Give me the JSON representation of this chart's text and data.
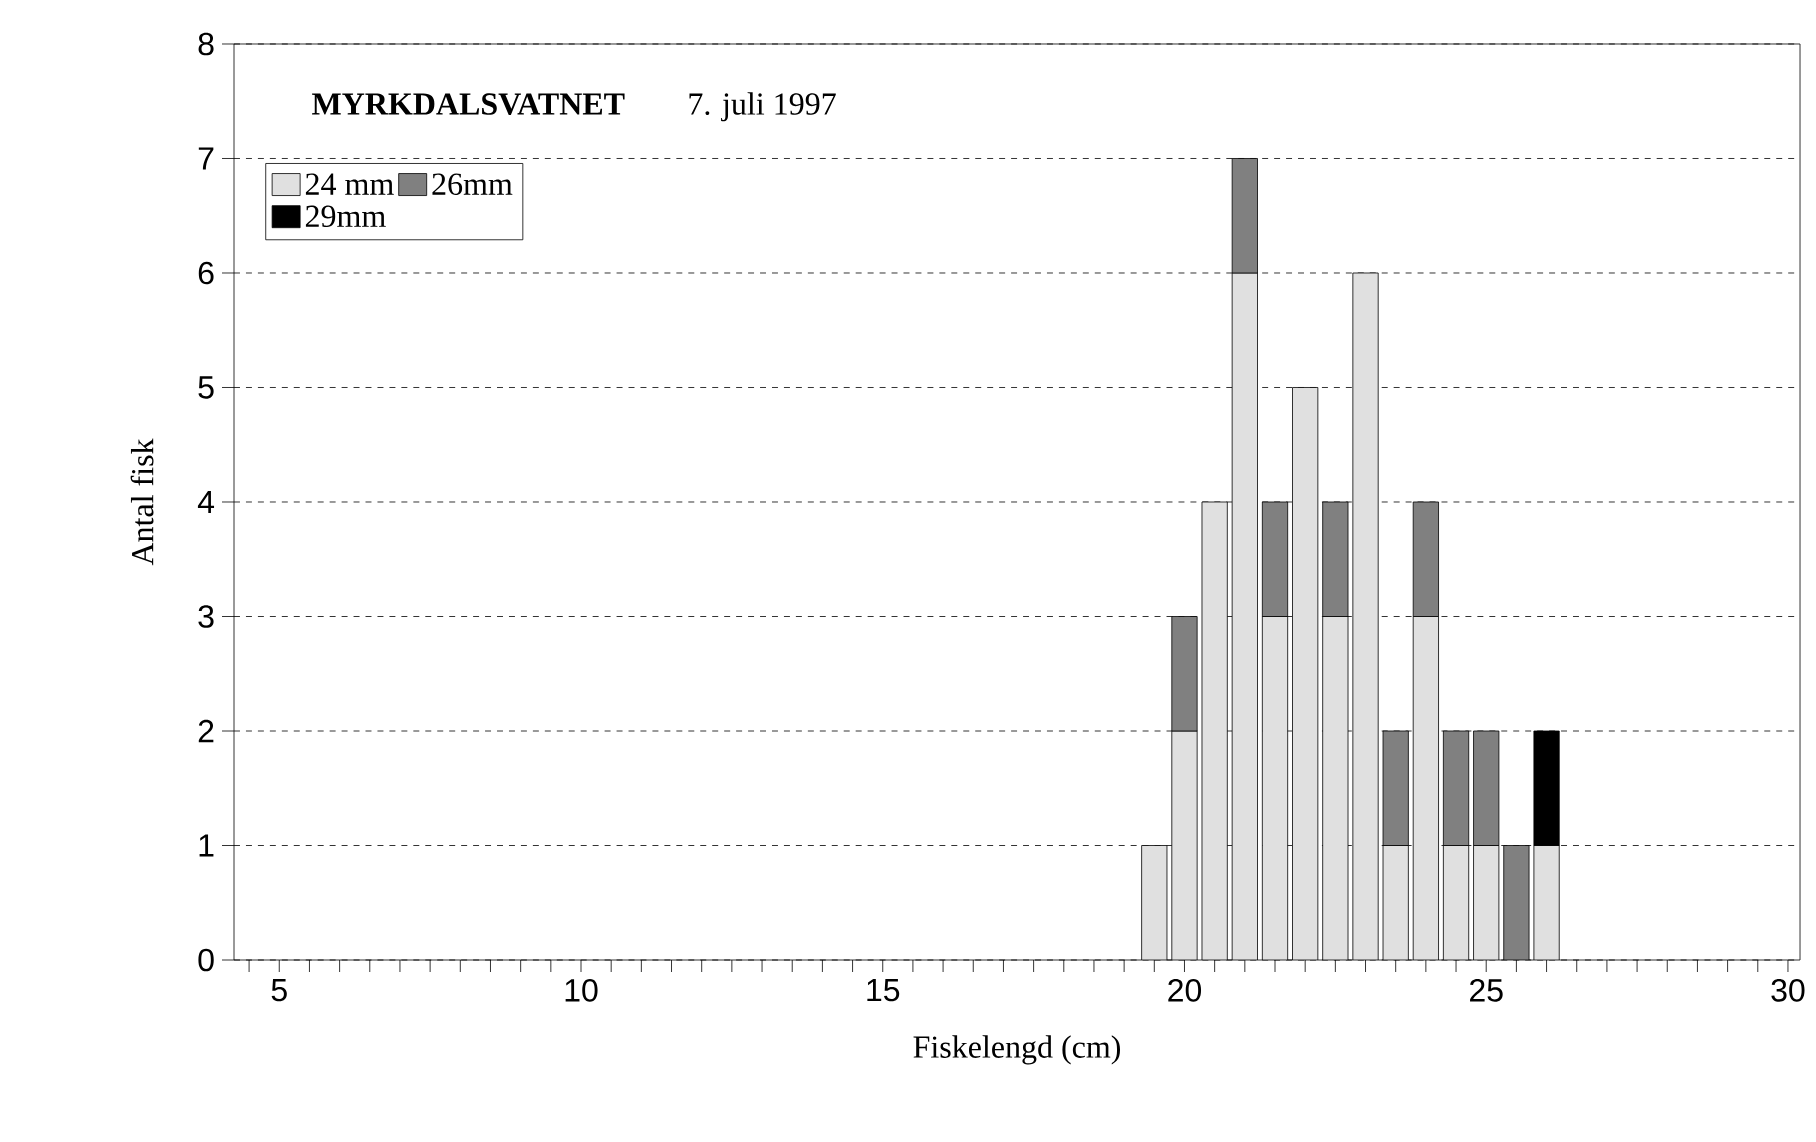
{
  "chart_data": {
    "type": "bar",
    "stacked": true,
    "title": "MYRKDALSVATNET",
    "subtitle": "7. juli 1997",
    "xlabel": "Fiskelengd (cm)",
    "ylabel": "Antal fisk",
    "x": [
      19.5,
      20,
      20.5,
      21,
      21.5,
      22,
      22.5,
      23,
      23.5,
      24,
      24.5,
      25,
      25.5,
      26
    ],
    "series": [
      {
        "name": "24 mm",
        "color": "#e0e0e0",
        "values": [
          1,
          2,
          4,
          6,
          3,
          5,
          3,
          6,
          1,
          3,
          1,
          1,
          null,
          1
        ]
      },
      {
        "name": "26mm",
        "color": "#808080",
        "values": [
          null,
          1,
          null,
          1,
          1,
          null,
          1,
          null,
          1,
          1,
          1,
          1,
          1,
          null
        ]
      },
      {
        "name": "29mm",
        "color": "#000000",
        "values": [
          null,
          null,
          null,
          null,
          null,
          null,
          null,
          null,
          null,
          null,
          null,
          null,
          null,
          1
        ]
      }
    ],
    "xlim": [
      4.25,
      30.2
    ],
    "ylim": [
      0,
      8
    ],
    "yticks": [
      0,
      1,
      2,
      3,
      4,
      5,
      6,
      7,
      8
    ],
    "xticks": [
      {
        "value": 4.5,
        "label": null
      },
      5,
      {
        "value": 5.5,
        "label": null
      },
      {
        "value": 6,
        "label": null
      },
      {
        "value": 6.5,
        "label": null
      },
      {
        "value": 7,
        "label": null
      },
      {
        "value": 7.5,
        "label": null
      },
      {
        "value": 8,
        "label": null
      },
      {
        "value": 8.5,
        "label": null
      },
      {
        "value": 9,
        "label": null
      },
      {
        "value": 9.5,
        "label": null
      },
      10,
      {
        "value": 10.5,
        "label": null
      },
      {
        "value": 11,
        "label": null
      },
      {
        "value": 11.5,
        "label": null
      },
      {
        "value": 12,
        "label": null
      },
      {
        "value": 12.5,
        "label": null
      },
      {
        "value": 13,
        "label": null
      },
      {
        "value": 13.5,
        "label": null
      },
      {
        "value": 14,
        "label": null
      },
      {
        "value": 14.5,
        "label": null
      },
      15,
      {
        "value": 15.5,
        "label": null
      },
      {
        "value": 16,
        "label": null
      },
      {
        "value": 16.5,
        "label": null
      },
      {
        "value": 17,
        "label": null
      },
      {
        "value": 17.5,
        "label": null
      },
      {
        "value": 18,
        "label": null
      },
      {
        "value": 18.5,
        "label": null
      },
      {
        "value": 19,
        "label": null
      },
      {
        "value": 19.5,
        "label": null
      },
      20,
      {
        "value": 20.5,
        "label": null
      },
      {
        "value": 21,
        "label": null
      },
      {
        "value": 21.5,
        "label": null
      },
      {
        "value": 22,
        "label": null
      },
      {
        "value": 22.5,
        "label": null
      },
      {
        "value": 23,
        "label": null
      },
      {
        "value": 23.5,
        "label": null
      },
      {
        "value": 24,
        "label": null
      },
      {
        "value": 24.5,
        "label": null
      },
      25,
      {
        "value": 25.5,
        "label": null
      },
      {
        "value": 26,
        "label": null
      },
      {
        "value": 26.5,
        "label": null
      },
      {
        "value": 27,
        "label": null
      },
      {
        "value": 27.5,
        "label": null
      },
      {
        "value": 28,
        "label": null
      },
      {
        "value": 28.5,
        "label": null
      },
      {
        "value": 29,
        "label": null
      },
      {
        "value": 29.5,
        "label": null
      },
      30
    ],
    "grid": "y",
    "legend": "top left"
  }
}
